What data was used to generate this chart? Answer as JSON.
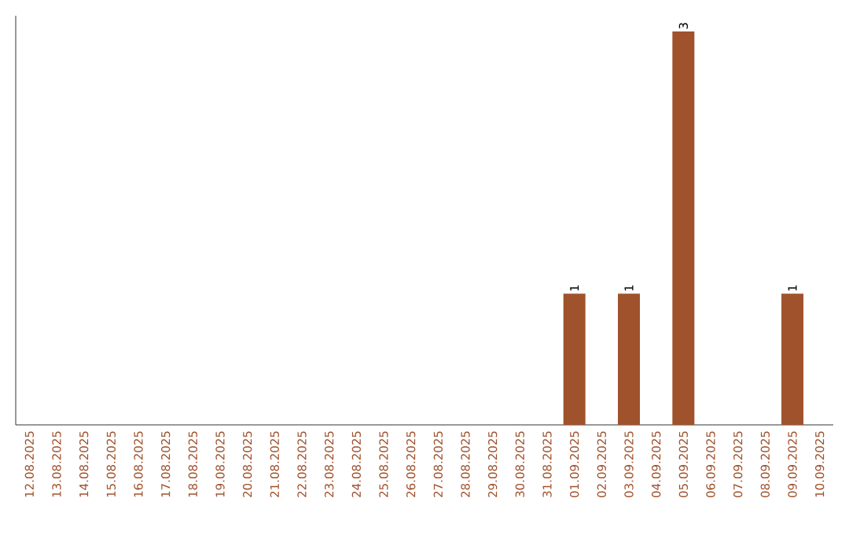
{
  "chart_data": {
    "type": "bar",
    "categories": [
      "12.08.2025",
      "13.08.2025",
      "14.08.2025",
      "15.08.2025",
      "16.08.2025",
      "17.08.2025",
      "18.08.2025",
      "19.08.2025",
      "20.08.2025",
      "21.08.2025",
      "22.08.2025",
      "23.08.2025",
      "24.08.2025",
      "25.08.2025",
      "26.08.2025",
      "27.08.2025",
      "28.08.2025",
      "29.08.2025",
      "30.08.2025",
      "31.08.2025",
      "01.09.2025",
      "02.09.2025",
      "03.09.2025",
      "04.09.2025",
      "05.09.2025",
      "06.09.2025",
      "07.09.2025",
      "08.09.2025",
      "09.09.2025",
      "10.09.2025"
    ],
    "values": [
      null,
      null,
      null,
      null,
      null,
      null,
      null,
      null,
      null,
      null,
      null,
      null,
      null,
      null,
      null,
      null,
      null,
      null,
      null,
      null,
      1,
      null,
      1,
      null,
      3,
      null,
      null,
      null,
      1,
      null
    ],
    "data_labels": true,
    "color": "#a0522d"
  }
}
